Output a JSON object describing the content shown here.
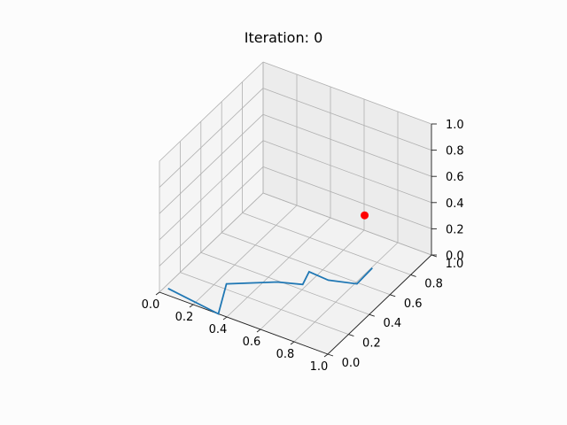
{
  "chart_data": {
    "type": "line3d",
    "title": "Iteration: 0",
    "xlabel": "",
    "ylabel": "",
    "zlabel": "",
    "xlim": [
      0,
      1
    ],
    "ylim": [
      0,
      1
    ],
    "zlim": [
      0,
      1
    ],
    "grid": true,
    "x_ticks": [
      "0.0",
      "0.2",
      "0.4",
      "0.6",
      "0.8",
      "1.0"
    ],
    "y_ticks": [
      "0.0",
      "0.2",
      "0.4",
      "0.6",
      "0.8",
      "1.0"
    ],
    "z_ticks": [
      "0.0",
      "0.2",
      "0.4",
      "0.6",
      "0.8",
      "1.0"
    ],
    "series": [
      {
        "kind": "line",
        "color": "#1f77b4",
        "x": [
          0.02,
          0.35,
          0.25,
          0.46,
          0.58,
          0.55,
          0.67,
          0.81,
          0.84
        ],
        "y": [
          0.05,
          0.0,
          0.24,
          0.39,
          0.44,
          0.55,
          0.54,
          0.59,
          0.69
        ],
        "z": [
          0.0,
          0.0,
          0.0,
          0.0,
          0.0,
          0.0,
          0.0,
          0.0,
          0.06
        ]
      },
      {
        "kind": "point",
        "color": "#ff0000",
        "x": [
          0.8
        ],
        "y": [
          0.68
        ],
        "z": [
          0.45
        ]
      }
    ]
  }
}
